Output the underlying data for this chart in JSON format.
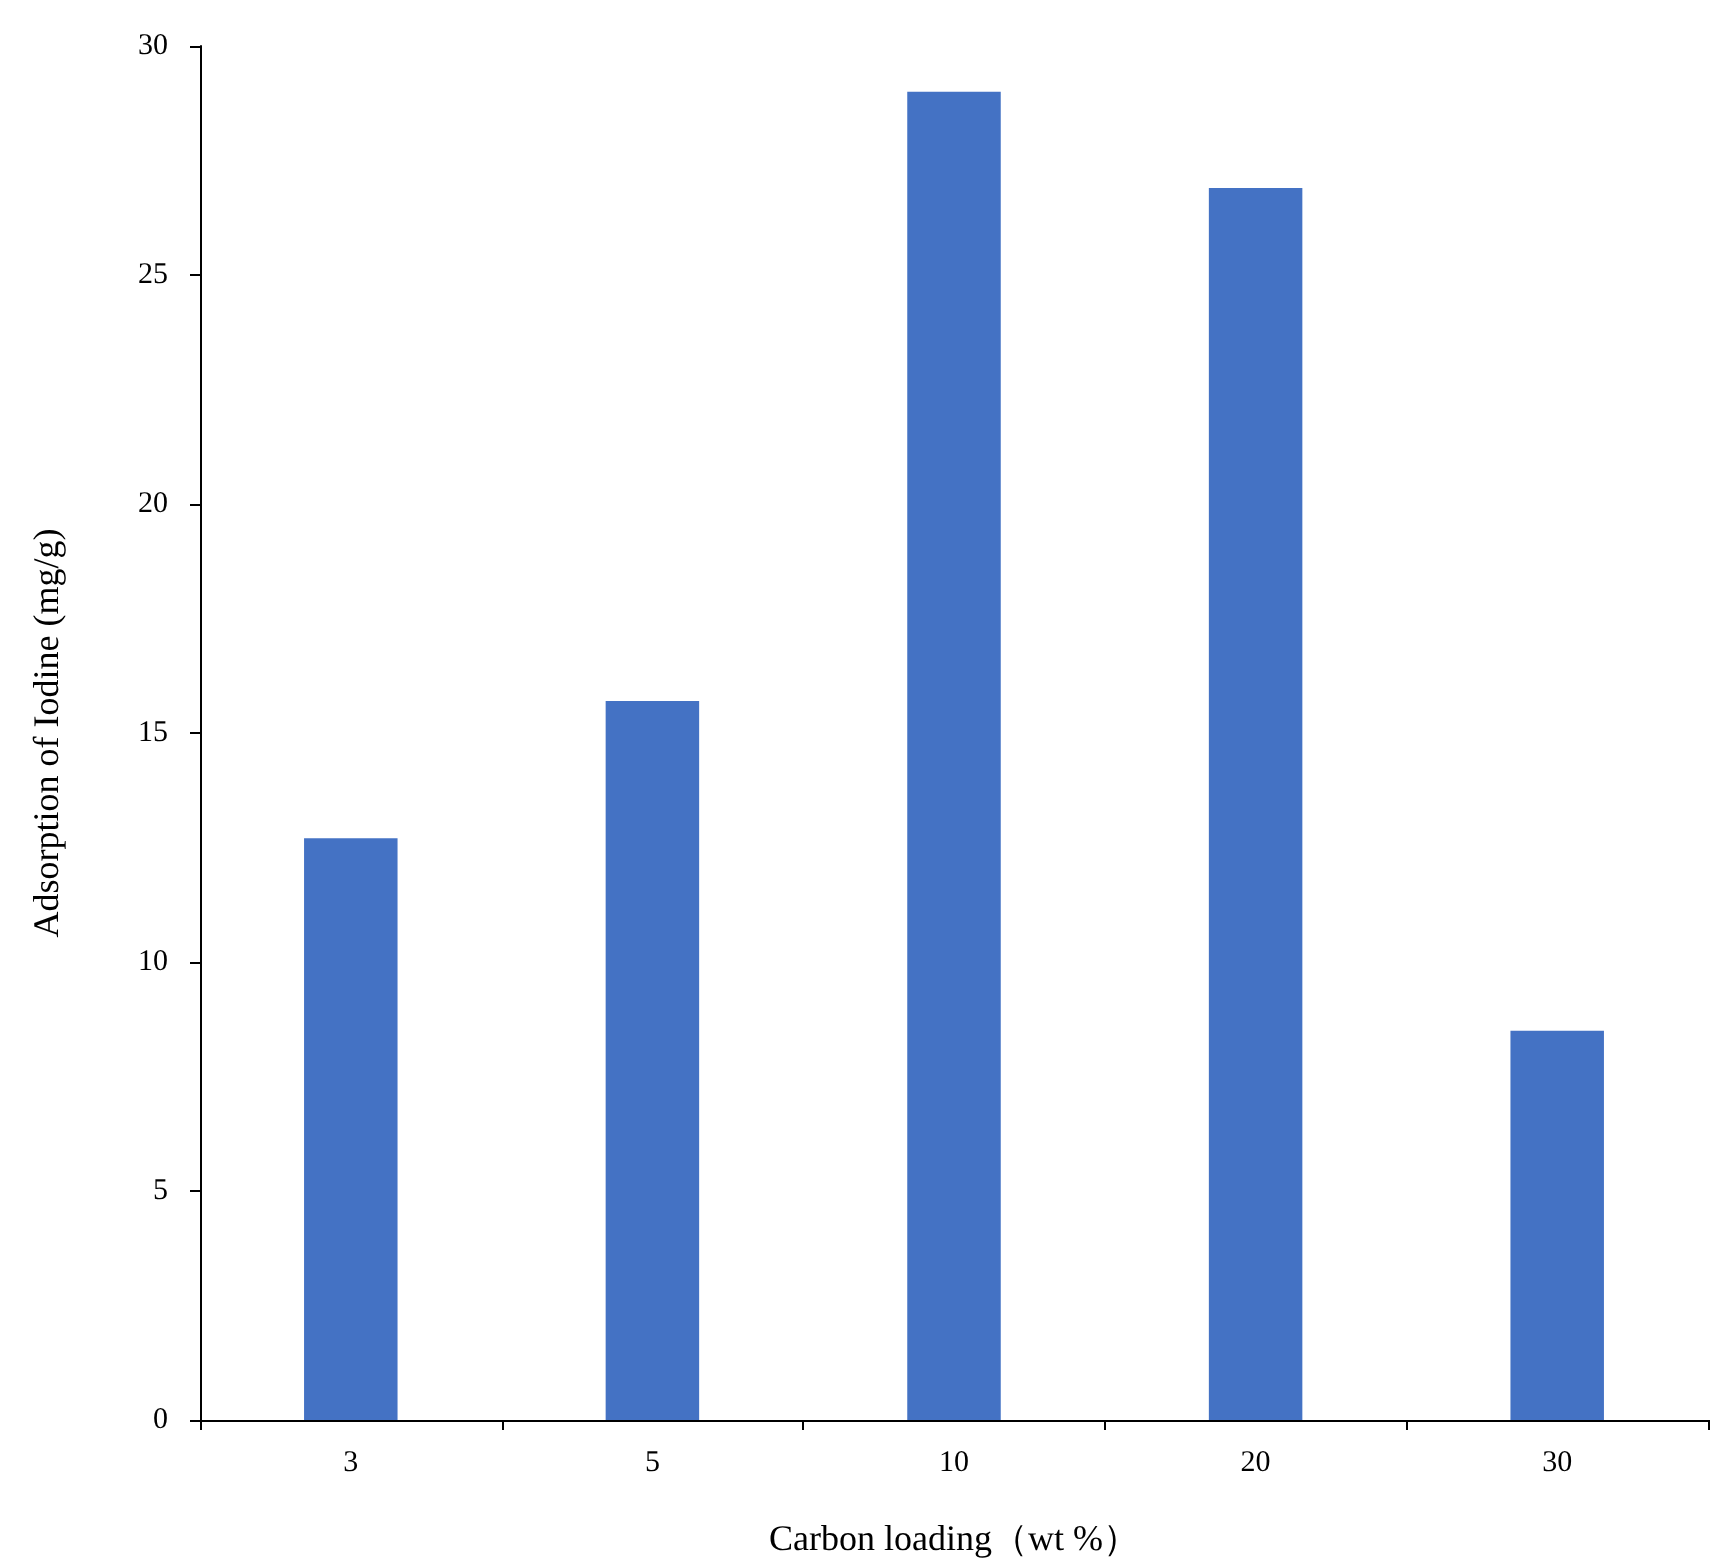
{
  "chart_data": {
    "type": "bar",
    "xlabel": "Carbon loading（wt %）",
    "ylabel": "Adsorption of Iodine (mg/g)",
    "categories": [
      "3",
      "5",
      "10",
      "20",
      "30"
    ],
    "values": [
      12.7,
      15.7,
      29.0,
      26.9,
      8.5
    ],
    "color": "#4472c4",
    "ylim": [
      0,
      30
    ],
    "yticks": [
      0,
      5,
      10,
      15,
      20,
      25,
      30
    ],
    "grid": false
  }
}
